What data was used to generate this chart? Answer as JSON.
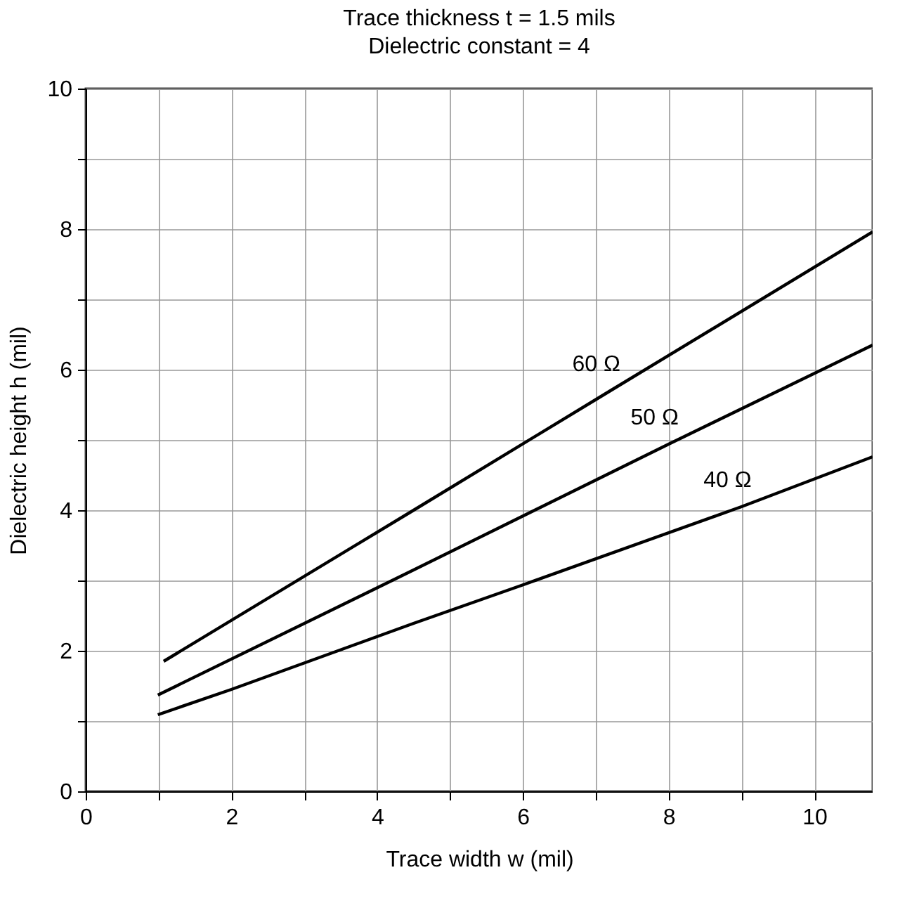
{
  "chart_data": {
    "type": "line",
    "title": "Trace thickness t = 1.5 mils",
    "subtitle": "Dielectric constant = 4",
    "xlabel": "Trace width w (mil)",
    "ylabel": "Dielectric height h (mil)",
    "series": [
      {
        "name": "60 Ω",
        "color": "#000000",
        "x": [
          1.07,
          4.5,
          7.2,
          10.8
        ],
        "values": [
          1.85,
          4.0,
          5.7,
          7.96
        ]
      },
      {
        "name": "50 Ω",
        "color": "#000000",
        "x": [
          0.99,
          4.5,
          8.0,
          10.8
        ],
        "values": [
          1.37,
          3.15,
          4.94,
          6.35
        ]
      },
      {
        "name": "40 Ω",
        "color": "#000000",
        "x": [
          0.99,
          2.0,
          4.5,
          5.98,
          9.0,
          10.8
        ],
        "values": [
          1.09,
          1.45,
          2.39,
          2.93,
          4.05,
          4.76
        ]
      }
    ],
    "xlim": [
      0,
      10.8
    ],
    "ylim": [
      0,
      10
    ],
    "xticks": [
      0,
      {
        "value": 1,
        "label": null
      },
      2,
      {
        "value": 3,
        "label": null
      },
      4,
      {
        "value": 5,
        "label": null
      },
      6,
      {
        "value": 7,
        "label": null
      },
      8,
      {
        "value": 9,
        "label": null
      },
      10
    ],
    "yticks": [
      0,
      {
        "value": 1,
        "label": null
      },
      2,
      {
        "value": 3,
        "label": null
      },
      4,
      {
        "value": 5,
        "label": null
      },
      6,
      {
        "value": 7,
        "label": null
      },
      8,
      {
        "value": 9,
        "label": null
      },
      10
    ],
    "grid": true,
    "line_style": "solid",
    "legend": false
  }
}
